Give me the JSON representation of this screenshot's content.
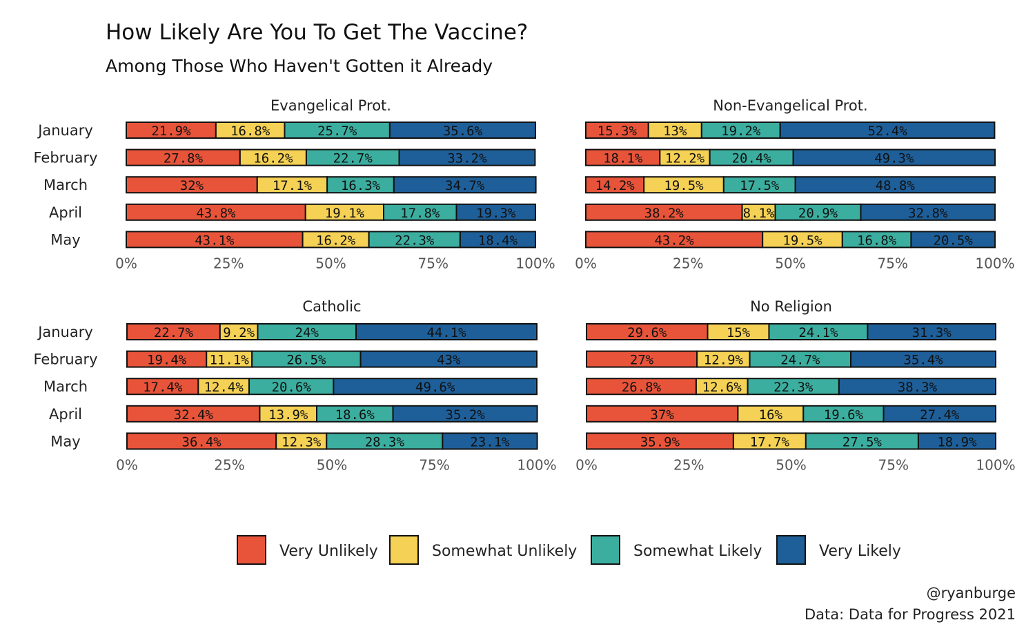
{
  "chart_data": {
    "type": "bar",
    "orientation": "horizontal",
    "stacked": true,
    "title": "How Likely Are You To Get The Vaccine?",
    "subtitle": "Among Those Who Haven't Gotten it Already",
    "categories": [
      "January",
      "February",
      "March",
      "April",
      "May"
    ],
    "xlim": [
      0,
      100
    ],
    "x_ticks": [
      "0%",
      "25%",
      "50%",
      "75%",
      "100%"
    ],
    "legend_position": "bottom",
    "series": [
      {
        "name": "Very Unlikely",
        "color": "#E8543A"
      },
      {
        "name": "Somewhat Unlikely",
        "color": "#F5D155"
      },
      {
        "name": "Somewhat Likely",
        "color": "#3BAE9F"
      },
      {
        "name": "Very Likely",
        "color": "#1E5F99"
      }
    ],
    "panels": [
      {
        "title": "Evangelical Prot.",
        "values": [
          [
            21.9,
            16.8,
            25.7,
            35.6
          ],
          [
            27.8,
            16.2,
            22.7,
            33.2
          ],
          [
            32,
            17.1,
            16.3,
            34.7
          ],
          [
            43.8,
            19.1,
            17.8,
            19.3
          ],
          [
            43.1,
            16.2,
            22.3,
            18.4
          ]
        ],
        "labels": [
          [
            "21.9%",
            "16.8%",
            "25.7%",
            "35.6%"
          ],
          [
            "27.8%",
            "16.2%",
            "22.7%",
            "33.2%"
          ],
          [
            "32%",
            "17.1%",
            "16.3%",
            "34.7%"
          ],
          [
            "43.8%",
            "19.1%",
            "17.8%",
            "19.3%"
          ],
          [
            "43.1%",
            "16.2%",
            "22.3%",
            "18.4%"
          ]
        ]
      },
      {
        "title": "Non-Evangelical Prot.",
        "values": [
          [
            15.3,
            13,
            19.2,
            52.4
          ],
          [
            18.1,
            12.2,
            20.4,
            49.3
          ],
          [
            14.2,
            19.5,
            17.5,
            48.8
          ],
          [
            38.2,
            8.1,
            20.9,
            32.8
          ],
          [
            43.2,
            19.5,
            16.8,
            20.5
          ]
        ],
        "labels": [
          [
            "15.3%",
            "13%",
            "19.2%",
            "52.4%"
          ],
          [
            "18.1%",
            "12.2%",
            "20.4%",
            "49.3%"
          ],
          [
            "14.2%",
            "19.5%",
            "17.5%",
            "48.8%"
          ],
          [
            "38.2%",
            "8.1%",
            "20.9%",
            "32.8%"
          ],
          [
            "43.2%",
            "19.5%",
            "16.8%",
            "20.5%"
          ]
        ]
      },
      {
        "title": "Catholic",
        "values": [
          [
            22.7,
            9.2,
            24,
            44.1
          ],
          [
            19.4,
            11.1,
            26.5,
            43
          ],
          [
            17.4,
            12.4,
            20.6,
            49.6
          ],
          [
            32.4,
            13.9,
            18.6,
            35.2
          ],
          [
            36.4,
            12.3,
            28.3,
            23.1
          ]
        ],
        "labels": [
          [
            "22.7%",
            "9.2%",
            "24%",
            "44.1%"
          ],
          [
            "19.4%",
            "11.1%",
            "26.5%",
            "43%"
          ],
          [
            "17.4%",
            "12.4%",
            "20.6%",
            "49.6%"
          ],
          [
            "32.4%",
            "13.9%",
            "18.6%",
            "35.2%"
          ],
          [
            "36.4%",
            "12.3%",
            "28.3%",
            "23.1%"
          ]
        ]
      },
      {
        "title": "No Religion",
        "values": [
          [
            29.6,
            15,
            24.1,
            31.3
          ],
          [
            27,
            12.9,
            24.7,
            35.4
          ],
          [
            26.8,
            12.6,
            22.3,
            38.3
          ],
          [
            37,
            16,
            19.6,
            27.4
          ],
          [
            35.9,
            17.7,
            27.5,
            18.9
          ]
        ],
        "labels": [
          [
            "29.6%",
            "15%",
            "24.1%",
            "31.3%"
          ],
          [
            "27%",
            "12.9%",
            "24.7%",
            "35.4%"
          ],
          [
            "26.8%",
            "12.6%",
            "22.3%",
            "38.3%"
          ],
          [
            "37%",
            "16%",
            "19.6%",
            "27.4%"
          ],
          [
            "35.9%",
            "17.7%",
            "27.5%",
            "18.9%"
          ]
        ]
      }
    ]
  },
  "caption": {
    "author": "@ryanburge",
    "source": "Data: Data for Progress 2021"
  }
}
